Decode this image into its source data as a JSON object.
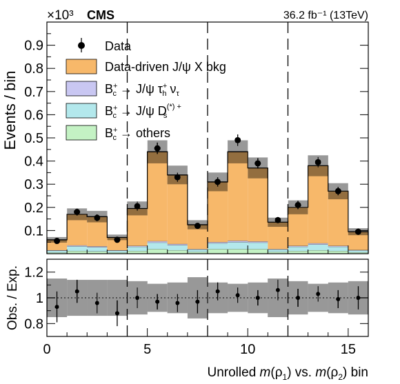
{
  "header": {
    "multiplier": "×10³",
    "experiment": "CMS",
    "lumi": "36.2 fb⁻¹ (13TeV)"
  },
  "colors": {
    "bkg": "#f7b86a",
    "tau": "#c9c7f2",
    "ds": "#b3e8ec",
    "others": "#c4f2c4",
    "hatch": "#000000"
  },
  "chart_data": [
    {
      "type": "bar",
      "stacked": true,
      "ylabel": "Events / bin",
      "ylim": [
        0,
        1.0
      ],
      "yticks": [
        0.1,
        0.2,
        0.3,
        0.4,
        0.5,
        0.6,
        0.7,
        0.8,
        0.9
      ],
      "ytick_labels": [
        "0.1",
        "0.2",
        "0.3",
        "0.4",
        "0.5",
        "0.6",
        "0.7",
        "0.8",
        "0.9"
      ],
      "x": [
        0,
        1,
        2,
        3,
        4,
        5,
        6,
        7,
        8,
        9,
        10,
        11,
        12,
        13,
        14,
        15
      ],
      "xlim": [
        0,
        16
      ],
      "dividers": [
        4,
        8,
        12
      ],
      "legend": [
        "Data",
        "Data-driven J/ψ X bkg",
        "B_c⁺ → J/ψ τ_h⁺ ν_τ",
        "B_c⁺ → J/ψ D_s^(*)+",
        "B_c⁺ → others"
      ],
      "legend_position": "top-left",
      "series": [
        {
          "name": "B_c⁺ → others",
          "values": [
            0.005,
            0.012,
            0.01,
            0.005,
            0.012,
            0.02,
            0.015,
            0.008,
            0.02,
            0.02,
            0.02,
            0.008,
            0.012,
            0.015,
            0.012,
            0.006
          ]
        },
        {
          "name": "B_c⁺ → J/ψ D_s^(*)+",
          "values": [
            0.008,
            0.02,
            0.018,
            0.008,
            0.018,
            0.028,
            0.022,
            0.01,
            0.025,
            0.03,
            0.028,
            0.01,
            0.018,
            0.025,
            0.018,
            0.008
          ]
        },
        {
          "name": "B_c⁺ → J/ψ τ_h⁺ ν_τ",
          "values": [
            0.002,
            0.004,
            0.004,
            0.002,
            0.004,
            0.006,
            0.005,
            0.002,
            0.005,
            0.006,
            0.005,
            0.002,
            0.004,
            0.005,
            0.004,
            0.002
          ]
        },
        {
          "name": "Data-driven J/ψ X bkg",
          "values": [
            0.045,
            0.134,
            0.128,
            0.055,
            0.161,
            0.386,
            0.298,
            0.105,
            0.26,
            0.384,
            0.317,
            0.116,
            0.166,
            0.335,
            0.236,
            0.079
          ]
        }
      ],
      "data": {
        "name": "Data",
        "values": [
          0.055,
          0.18,
          0.155,
          0.06,
          0.205,
          0.455,
          0.33,
          0.12,
          0.31,
          0.49,
          0.39,
          0.145,
          0.21,
          0.395,
          0.27,
          0.095
        ],
        "errors": [
          0.01,
          0.015,
          0.015,
          0.01,
          0.02,
          0.025,
          0.02,
          0.012,
          0.02,
          0.025,
          0.022,
          0.013,
          0.018,
          0.022,
          0.018,
          0.01
        ]
      },
      "uncertainty": [
        0.012,
        0.025,
        0.025,
        0.012,
        0.03,
        0.05,
        0.04,
        0.02,
        0.04,
        0.05,
        0.045,
        0.02,
        0.03,
        0.045,
        0.035,
        0.015
      ]
    },
    {
      "type": "scatter",
      "ylabel": "Obs. / Exp.",
      "xlabel": "Unrolled m(ρ₁) vs. m(ρ₂) bin",
      "ylim": [
        0.7,
        1.3
      ],
      "yticks": [
        0.8,
        1.0,
        1.2
      ],
      "ytick_labels": [
        "0.8",
        "1",
        "1.2"
      ],
      "xlim": [
        0,
        16
      ],
      "xticks": [
        0,
        5,
        10,
        15
      ],
      "xtick_labels": [
        "0",
        "5",
        "10",
        "15"
      ],
      "x": [
        0.5,
        1.5,
        2.5,
        3.5,
        4.5,
        5.5,
        6.5,
        7.5,
        8.5,
        9.5,
        10.5,
        11.5,
        12.5,
        13.5,
        14.5,
        15.5
      ],
      "ratio": [
        0.93,
        1.05,
        0.96,
        0.88,
        1.0,
        0.97,
        0.96,
        0.97,
        1.05,
        1.02,
        1.0,
        1.06,
        1.0,
        1.03,
        0.99,
        1.0
      ],
      "ratio_err": [
        0.12,
        0.09,
        0.08,
        0.1,
        0.08,
        0.06,
        0.07,
        0.09,
        0.07,
        0.06,
        0.06,
        0.08,
        0.07,
        0.06,
        0.07,
        0.09
      ],
      "band": [
        0.15,
        0.14,
        0.14,
        0.14,
        0.13,
        0.11,
        0.12,
        0.16,
        0.12,
        0.11,
        0.12,
        0.15,
        0.13,
        0.11,
        0.12,
        0.13
      ],
      "dividers": [
        4,
        8,
        12
      ]
    }
  ]
}
